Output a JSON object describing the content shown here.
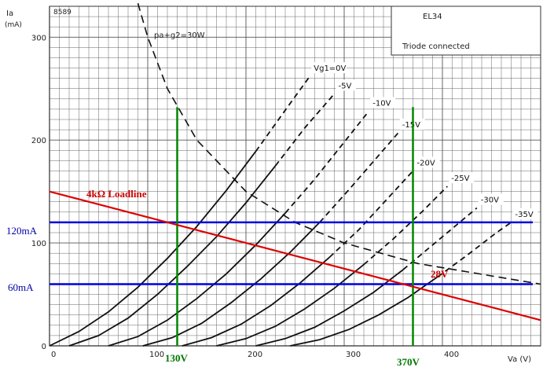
{
  "header": {
    "figure_number": "8589",
    "y_axis_label": "Ia",
    "y_axis_unit": "(mA)",
    "x_axis_label": "Va (V)",
    "tube": "EL34",
    "mode": "Triode connected",
    "dissipation_label": "pa+g2=30W"
  },
  "annotations": {
    "loadline_label": "4kΩ  Loadline",
    "bias_label": "28V",
    "current_high": "120mA",
    "current_low": "60mA",
    "voltage_low": "130V",
    "voltage_high": "370V"
  },
  "chart_data": {
    "type": "line",
    "x_range": [
      0,
      500
    ],
    "y_range": [
      0,
      330
    ],
    "x_ticks": [
      "0",
      "100",
      "200",
      "300",
      "400"
    ],
    "y_ticks": [
      "0",
      "100",
      "200",
      "300"
    ],
    "grid": true,
    "series": [
      {
        "name": "Vg1=0V",
        "label": "Vg1=0V",
        "points": [
          [
            0,
            0
          ],
          [
            30,
            14
          ],
          [
            60,
            33
          ],
          [
            90,
            57
          ],
          [
            120,
            85
          ],
          [
            150,
            116
          ],
          [
            180,
            151
          ],
          [
            210,
            189
          ],
          [
            240,
            229
          ],
          [
            265,
            262
          ]
        ],
        "dashed_from_x": 210
      },
      {
        "name": "-5V",
        "label": "-5V",
        "points": [
          [
            20,
            0
          ],
          [
            50,
            10
          ],
          [
            80,
            27
          ],
          [
            110,
            50
          ],
          [
            140,
            77
          ],
          [
            170,
            106
          ],
          [
            200,
            139
          ],
          [
            230,
            175
          ],
          [
            260,
            212
          ],
          [
            290,
            245
          ]
        ],
        "dashed_from_x": 240
      },
      {
        "name": "-10V",
        "label": "-10V",
        "points": [
          [
            60,
            0
          ],
          [
            90,
            9
          ],
          [
            120,
            25
          ],
          [
            150,
            46
          ],
          [
            180,
            70
          ],
          [
            210,
            98
          ],
          [
            240,
            129
          ],
          [
            270,
            162
          ],
          [
            300,
            198
          ],
          [
            325,
            228
          ]
        ],
        "dashed_from_x": 250
      },
      {
        "name": "-15V",
        "label": "-15V",
        "points": [
          [
            95,
            0
          ],
          [
            125,
            8
          ],
          [
            155,
            22
          ],
          [
            185,
            42
          ],
          [
            215,
            65
          ],
          [
            245,
            91
          ],
          [
            275,
            120
          ],
          [
            305,
            152
          ],
          [
            335,
            185
          ],
          [
            355,
            207
          ]
        ],
        "dashed_from_x": 275
      },
      {
        "name": "-20V",
        "label": "-20V",
        "points": [
          [
            135,
            0
          ],
          [
            165,
            8
          ],
          [
            195,
            21
          ],
          [
            225,
            39
          ],
          [
            255,
            61
          ],
          [
            285,
            86
          ],
          [
            315,
            113
          ],
          [
            345,
            144
          ],
          [
            370,
            170
          ]
        ],
        "dashed_from_x": 300
      },
      {
        "name": "-25V",
        "label": "-25V",
        "points": [
          [
            170,
            0
          ],
          [
            200,
            7
          ],
          [
            230,
            19
          ],
          [
            260,
            36
          ],
          [
            290,
            56
          ],
          [
            320,
            79
          ],
          [
            350,
            104
          ],
          [
            380,
            131
          ],
          [
            405,
            155
          ]
        ],
        "dashed_from_x": 330
      },
      {
        "name": "-30V",
        "label": "-30V",
        "points": [
          [
            210,
            0
          ],
          [
            240,
            7
          ],
          [
            270,
            18
          ],
          [
            300,
            34
          ],
          [
            330,
            52
          ],
          [
            360,
            74
          ],
          [
            390,
            98
          ],
          [
            420,
            122
          ],
          [
            435,
            134
          ]
        ],
        "dashed_from_x": 370
      },
      {
        "name": "-35V",
        "label": "-35V",
        "points": [
          [
            245,
            0
          ],
          [
            275,
            6
          ],
          [
            305,
            16
          ],
          [
            335,
            30
          ],
          [
            365,
            47
          ],
          [
            395,
            67
          ],
          [
            425,
            88
          ],
          [
            455,
            110
          ],
          [
            470,
            120
          ]
        ],
        "dashed_from_x": 400
      }
    ],
    "dissipation_curve": {
      "label": "pa+g2=30W",
      "points": [
        [
          90,
          333
        ],
        [
          100,
          300
        ],
        [
          120,
          250
        ],
        [
          150,
          200
        ],
        [
          200,
          150
        ],
        [
          250,
          120
        ],
        [
          300,
          100
        ],
        [
          375,
          80
        ],
        [
          500,
          60
        ]
      ]
    },
    "loadline": {
      "label": "4kΩ  Loadline",
      "points": [
        [
          0,
          150
        ],
        [
          500,
          25
        ]
      ]
    },
    "hlines": [
      {
        "y": 120,
        "label": "120mA"
      },
      {
        "y": 60,
        "label": "60mA"
      }
    ],
    "vlines": [
      {
        "x": 130,
        "y_top": 232,
        "label": "130V"
      },
      {
        "x": 370,
        "y_top": 232,
        "label": "370V"
      }
    ]
  },
  "colors": {
    "loadline": "#dd0000",
    "hline": "#0000dd",
    "vline": "#008800",
    "curve": "#111111",
    "grid": "#555555"
  }
}
